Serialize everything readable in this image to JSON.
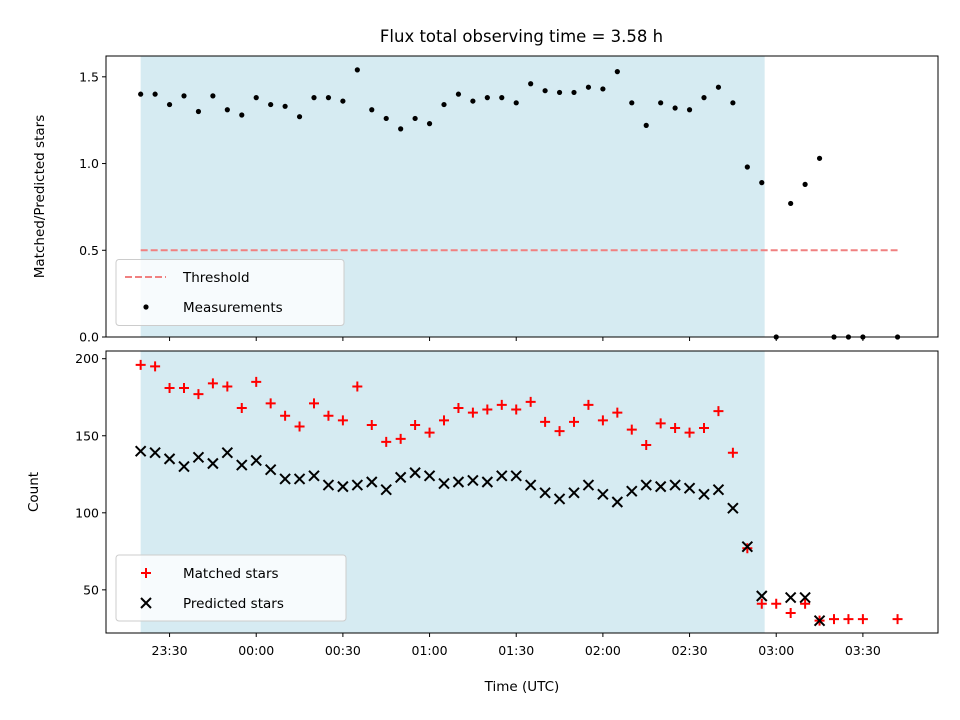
{
  "title": "Flux total observing time = 3.58 h",
  "colors": {
    "shade": "#add8e6",
    "threshold": "#f08080",
    "matched": "#ff0000",
    "predicted": "#000000",
    "measurement": "#000000"
  },
  "chart_data": [
    {
      "type": "scatter",
      "ylabel": "Matched/Predicted stars",
      "ylim": [
        0,
        1.62
      ],
      "yticks": [
        0.0,
        0.5,
        1.0,
        1.5
      ],
      "ytick_labels": [
        "0.0",
        "0.5",
        "1.0",
        "1.5"
      ],
      "legend": {
        "placement": "lower-left",
        "entries": [
          "Threshold",
          "Measurements"
        ]
      },
      "shaded_interval": [
        "23:20",
        "02:56"
      ],
      "threshold": {
        "name": "Threshold",
        "value": 0.5,
        "x_range": [
          "23:20",
          "03:42"
        ]
      },
      "series": [
        {
          "name": "Measurements",
          "x": [
            "23:20",
            "23:25",
            "23:30",
            "23:35",
            "23:40",
            "23:45",
            "23:50",
            "23:55",
            "00:00",
            "00:05",
            "00:10",
            "00:15",
            "00:20",
            "00:25",
            "00:30",
            "00:35",
            "00:40",
            "00:45",
            "00:50",
            "00:55",
            "01:00",
            "01:05",
            "01:10",
            "01:15",
            "01:20",
            "01:25",
            "01:30",
            "01:35",
            "01:40",
            "01:45",
            "01:50",
            "01:55",
            "02:00",
            "02:05",
            "02:10",
            "02:15",
            "02:20",
            "02:25",
            "02:30",
            "02:35",
            "02:40",
            "02:45",
            "02:50",
            "02:55",
            "03:00",
            "03:05",
            "03:10",
            "03:15",
            "03:20",
            "03:25",
            "03:30",
            "03:42"
          ],
          "values": [
            1.4,
            1.4,
            1.34,
            1.39,
            1.3,
            1.39,
            1.31,
            1.28,
            1.38,
            1.34,
            1.33,
            1.27,
            1.38,
            1.38,
            1.36,
            1.54,
            1.31,
            1.26,
            1.2,
            1.26,
            1.23,
            1.34,
            1.4,
            1.36,
            1.38,
            1.38,
            1.35,
            1.46,
            1.42,
            1.41,
            1.41,
            1.44,
            1.43,
            1.53,
            1.35,
            1.22,
            1.35,
            1.32,
            1.31,
            1.38,
            1.44,
            1.35,
            0.98,
            0.89,
            0.0,
            0.77,
            0.88,
            1.03,
            0.0,
            0.0,
            0.0,
            0.0
          ]
        }
      ]
    },
    {
      "type": "scatter",
      "xlabel": "Time (UTC)",
      "ylabel": "Count",
      "ylim": [
        22,
        205
      ],
      "yticks": [
        50,
        100,
        150,
        200
      ],
      "ytick_labels": [
        "50",
        "100",
        "150",
        "200"
      ],
      "xticks": [
        "23:30",
        "00:00",
        "00:30",
        "01:00",
        "01:30",
        "02:00",
        "02:30",
        "03:00",
        "03:30"
      ],
      "xlim": [
        "23:08",
        "03:56"
      ],
      "legend": {
        "placement": "lower-left",
        "entries": [
          "Matched stars",
          "Predicted stars"
        ]
      },
      "shaded_interval": [
        "23:20",
        "02:56"
      ],
      "series": [
        {
          "name": "Matched stars",
          "x": [
            "23:20",
            "23:25",
            "23:30",
            "23:35",
            "23:40",
            "23:45",
            "23:50",
            "23:55",
            "00:00",
            "00:05",
            "00:10",
            "00:15",
            "00:20",
            "00:25",
            "00:30",
            "00:35",
            "00:40",
            "00:45",
            "00:50",
            "00:55",
            "01:00",
            "01:05",
            "01:10",
            "01:15",
            "01:20",
            "01:25",
            "01:30",
            "01:35",
            "01:40",
            "01:45",
            "01:50",
            "01:55",
            "02:00",
            "02:05",
            "02:10",
            "02:15",
            "02:20",
            "02:25",
            "02:30",
            "02:35",
            "02:40",
            "02:45",
            "02:50",
            "02:55",
            "03:00",
            "03:05",
            "03:10",
            "03:15",
            "03:20",
            "03:25",
            "03:30",
            "03:42"
          ],
          "values": [
            196,
            195,
            181,
            181,
            177,
            184,
            182,
            168,
            185,
            171,
            163,
            156,
            171,
            163,
            160,
            182,
            157,
            146,
            148,
            157,
            152,
            160,
            168,
            165,
            167,
            170,
            167,
            172,
            159,
            153,
            159,
            170,
            160,
            165,
            154,
            144,
            158,
            155,
            152,
            155,
            166,
            139,
            77,
            41,
            41,
            35,
            41,
            30,
            31,
            31,
            31,
            31
          ]
        },
        {
          "name": "Predicted stars",
          "x": [
            "23:20",
            "23:25",
            "23:30",
            "23:35",
            "23:40",
            "23:45",
            "23:50",
            "23:55",
            "00:00",
            "00:05",
            "00:10",
            "00:15",
            "00:20",
            "00:25",
            "00:30",
            "00:35",
            "00:40",
            "00:45",
            "00:50",
            "00:55",
            "01:00",
            "01:05",
            "01:10",
            "01:15",
            "01:20",
            "01:25",
            "01:30",
            "01:35",
            "01:40",
            "01:45",
            "01:50",
            "01:55",
            "02:00",
            "02:05",
            "02:10",
            "02:15",
            "02:20",
            "02:25",
            "02:30",
            "02:35",
            "02:40",
            "02:45",
            "02:50",
            "02:55",
            "03:05",
            "03:10",
            "03:15"
          ],
          "values": [
            140,
            139,
            135,
            130,
            136,
            132,
            139,
            131,
            134,
            128,
            122,
            122,
            124,
            118,
            117,
            118,
            120,
            115,
            123,
            126,
            124,
            119,
            120,
            121,
            120,
            124,
            124,
            118,
            113,
            109,
            113,
            118,
            112,
            107,
            114,
            118,
            117,
            118,
            116,
            112,
            115,
            103,
            78,
            46,
            45,
            45,
            30
          ]
        }
      ]
    }
  ]
}
